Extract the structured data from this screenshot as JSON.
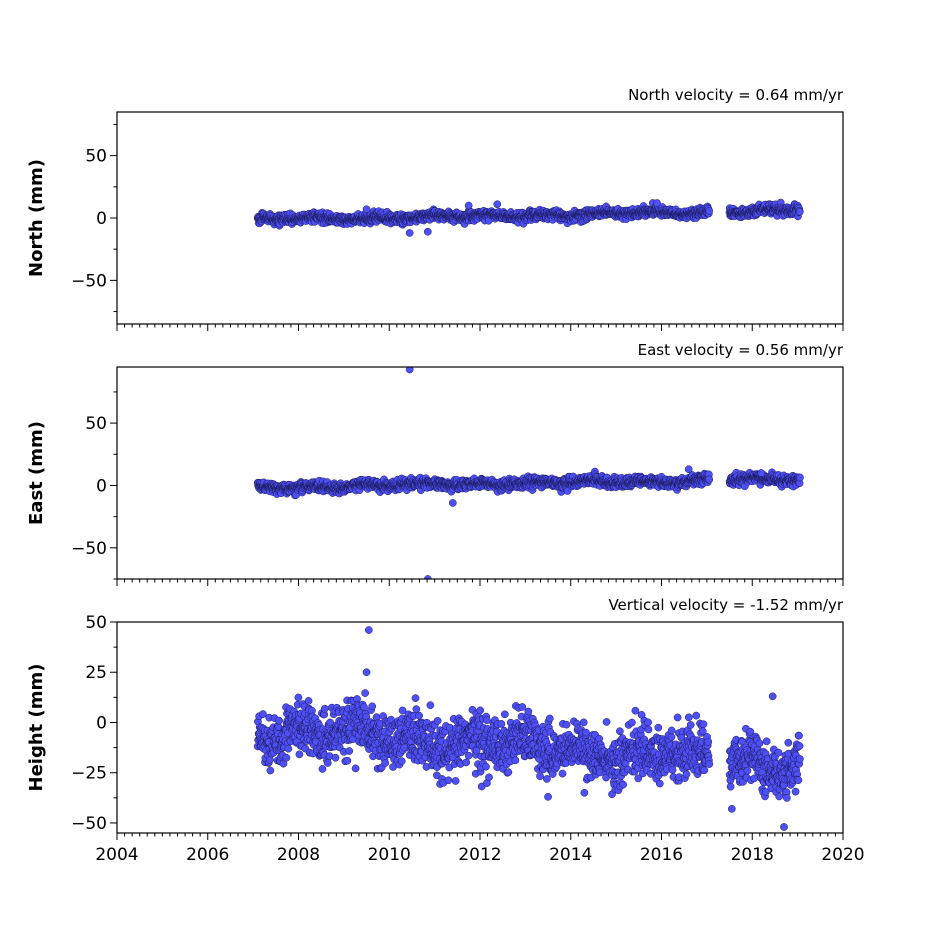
{
  "chart_data": [
    {
      "type": "scatter",
      "title": "North velocity = 0.64 mm/yr",
      "ylabel": "North (mm)",
      "xlim": [
        2004,
        2020
      ],
      "ylim": [
        -85,
        85
      ],
      "yticks": [
        "50",
        "0",
        "−50"
      ],
      "ytick_values": [
        50,
        0,
        -50
      ],
      "show_xtick_labels": false,
      "point_color": "#4f4ff6",
      "trend": {
        "slope_mm_per_yr": 0.64,
        "anchor_year": 2007.1,
        "anchor_value": -1.5
      },
      "segments": [
        [
          2007.1,
          2017.05
        ],
        [
          2017.5,
          2019.05
        ]
      ],
      "scatter_sigma": 1.8,
      "outliers": [
        [
          2010.45,
          -12
        ],
        [
          2010.85,
          -11
        ],
        [
          2009.5,
          7
        ],
        [
          2011.75,
          10
        ],
        [
          2015.9,
          12
        ]
      ]
    },
    {
      "type": "scatter",
      "title": "East velocity = 0.56 mm/yr",
      "ylabel": "East (mm)",
      "xlim": [
        2004,
        2020
      ],
      "ylim": [
        -75,
        95
      ],
      "yticks": [
        "50",
        "0",
        "−50"
      ],
      "ytick_values": [
        50,
        0,
        -50
      ],
      "show_xtick_labels": false,
      "point_color": "#4f4ff6",
      "trend": {
        "slope_mm_per_yr": 0.56,
        "anchor_year": 2007.1,
        "anchor_value": -1.5
      },
      "segments": [
        [
          2007.1,
          2017.05
        ],
        [
          2017.5,
          2019.05
        ]
      ],
      "scatter_sigma": 1.9,
      "outliers": [
        [
          2010.45,
          93
        ],
        [
          2010.85,
          -75
        ],
        [
          2011.4,
          -14
        ],
        [
          2016.6,
          13
        ],
        [
          2018.2,
          10
        ]
      ]
    },
    {
      "type": "scatter",
      "title": "Vertical velocity = -1.52 mm/yr",
      "ylabel": "Height (mm)",
      "xlim": [
        2004,
        2020
      ],
      "ylim": [
        -55,
        50
      ],
      "yticks": [
        "50",
        "25",
        "0",
        "−25",
        "−50"
      ],
      "ytick_values": [
        50,
        25,
        0,
        -25,
        -50
      ],
      "show_xtick_labels": true,
      "xticks": [
        "2004",
        "2006",
        "2008",
        "2010",
        "2012",
        "2014",
        "2016",
        "2018",
        "2020"
      ],
      "xtick_values": [
        2004,
        2006,
        2008,
        2010,
        2012,
        2014,
        2016,
        2018,
        2020
      ],
      "point_color": "#4f4ff6",
      "trend": {
        "slope_mm_per_yr": -1.52,
        "anchor_year": 2007.1,
        "anchor_value": -3
      },
      "segments": [
        [
          2007.1,
          2017.05
        ],
        [
          2017.5,
          2019.05
        ]
      ],
      "scatter_sigma": 6.5,
      "outliers": [
        [
          2009.55,
          46
        ],
        [
          2009.5,
          25
        ],
        [
          2018.45,
          13
        ],
        [
          2018.7,
          -52
        ],
        [
          2017.55,
          -43
        ],
        [
          2014.3,
          -35
        ],
        [
          2013.5,
          -37
        ]
      ]
    }
  ]
}
